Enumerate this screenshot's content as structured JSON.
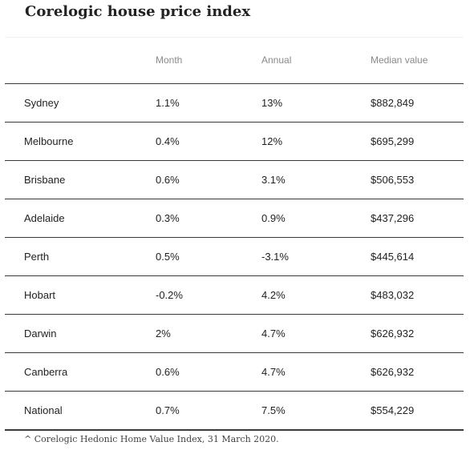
{
  "title": "Corelogic house price index",
  "table": {
    "columns": [
      "",
      "Month",
      "Annual",
      "Median value"
    ],
    "rows": [
      {
        "city": "Sydney",
        "month": "1.1%",
        "annual": "13%",
        "median": "$882,849"
      },
      {
        "city": "Melbourne",
        "month": "0.4%",
        "annual": "12%",
        "median": "$695,299"
      },
      {
        "city": "Brisbane",
        "month": "0.6%",
        "annual": "3.1%",
        "median": "$506,553"
      },
      {
        "city": "Adelaide",
        "month": "0.3%",
        "annual": "0.9%",
        "median": "$437,296"
      },
      {
        "city": "Perth",
        "month": "0.5%",
        "annual": "-3.1%",
        "median": "$445,614"
      },
      {
        "city": "Hobart",
        "month": "-0.2%",
        "annual": "4.2%",
        "median": "$483,032"
      },
      {
        "city": "Darwin",
        "month": "2%",
        "annual": "4.7%",
        "median": "$626,932"
      },
      {
        "city": "Canberra",
        "month": "0.6%",
        "annual": "4.7%",
        "median": "$626,932"
      },
      {
        "city": "National",
        "month": "0.7%",
        "annual": "7.5%",
        "median": "$554,229"
      }
    ]
  },
  "footnote": "^ Corelogic Hedonic Home Value Index, 31 March 2020."
}
